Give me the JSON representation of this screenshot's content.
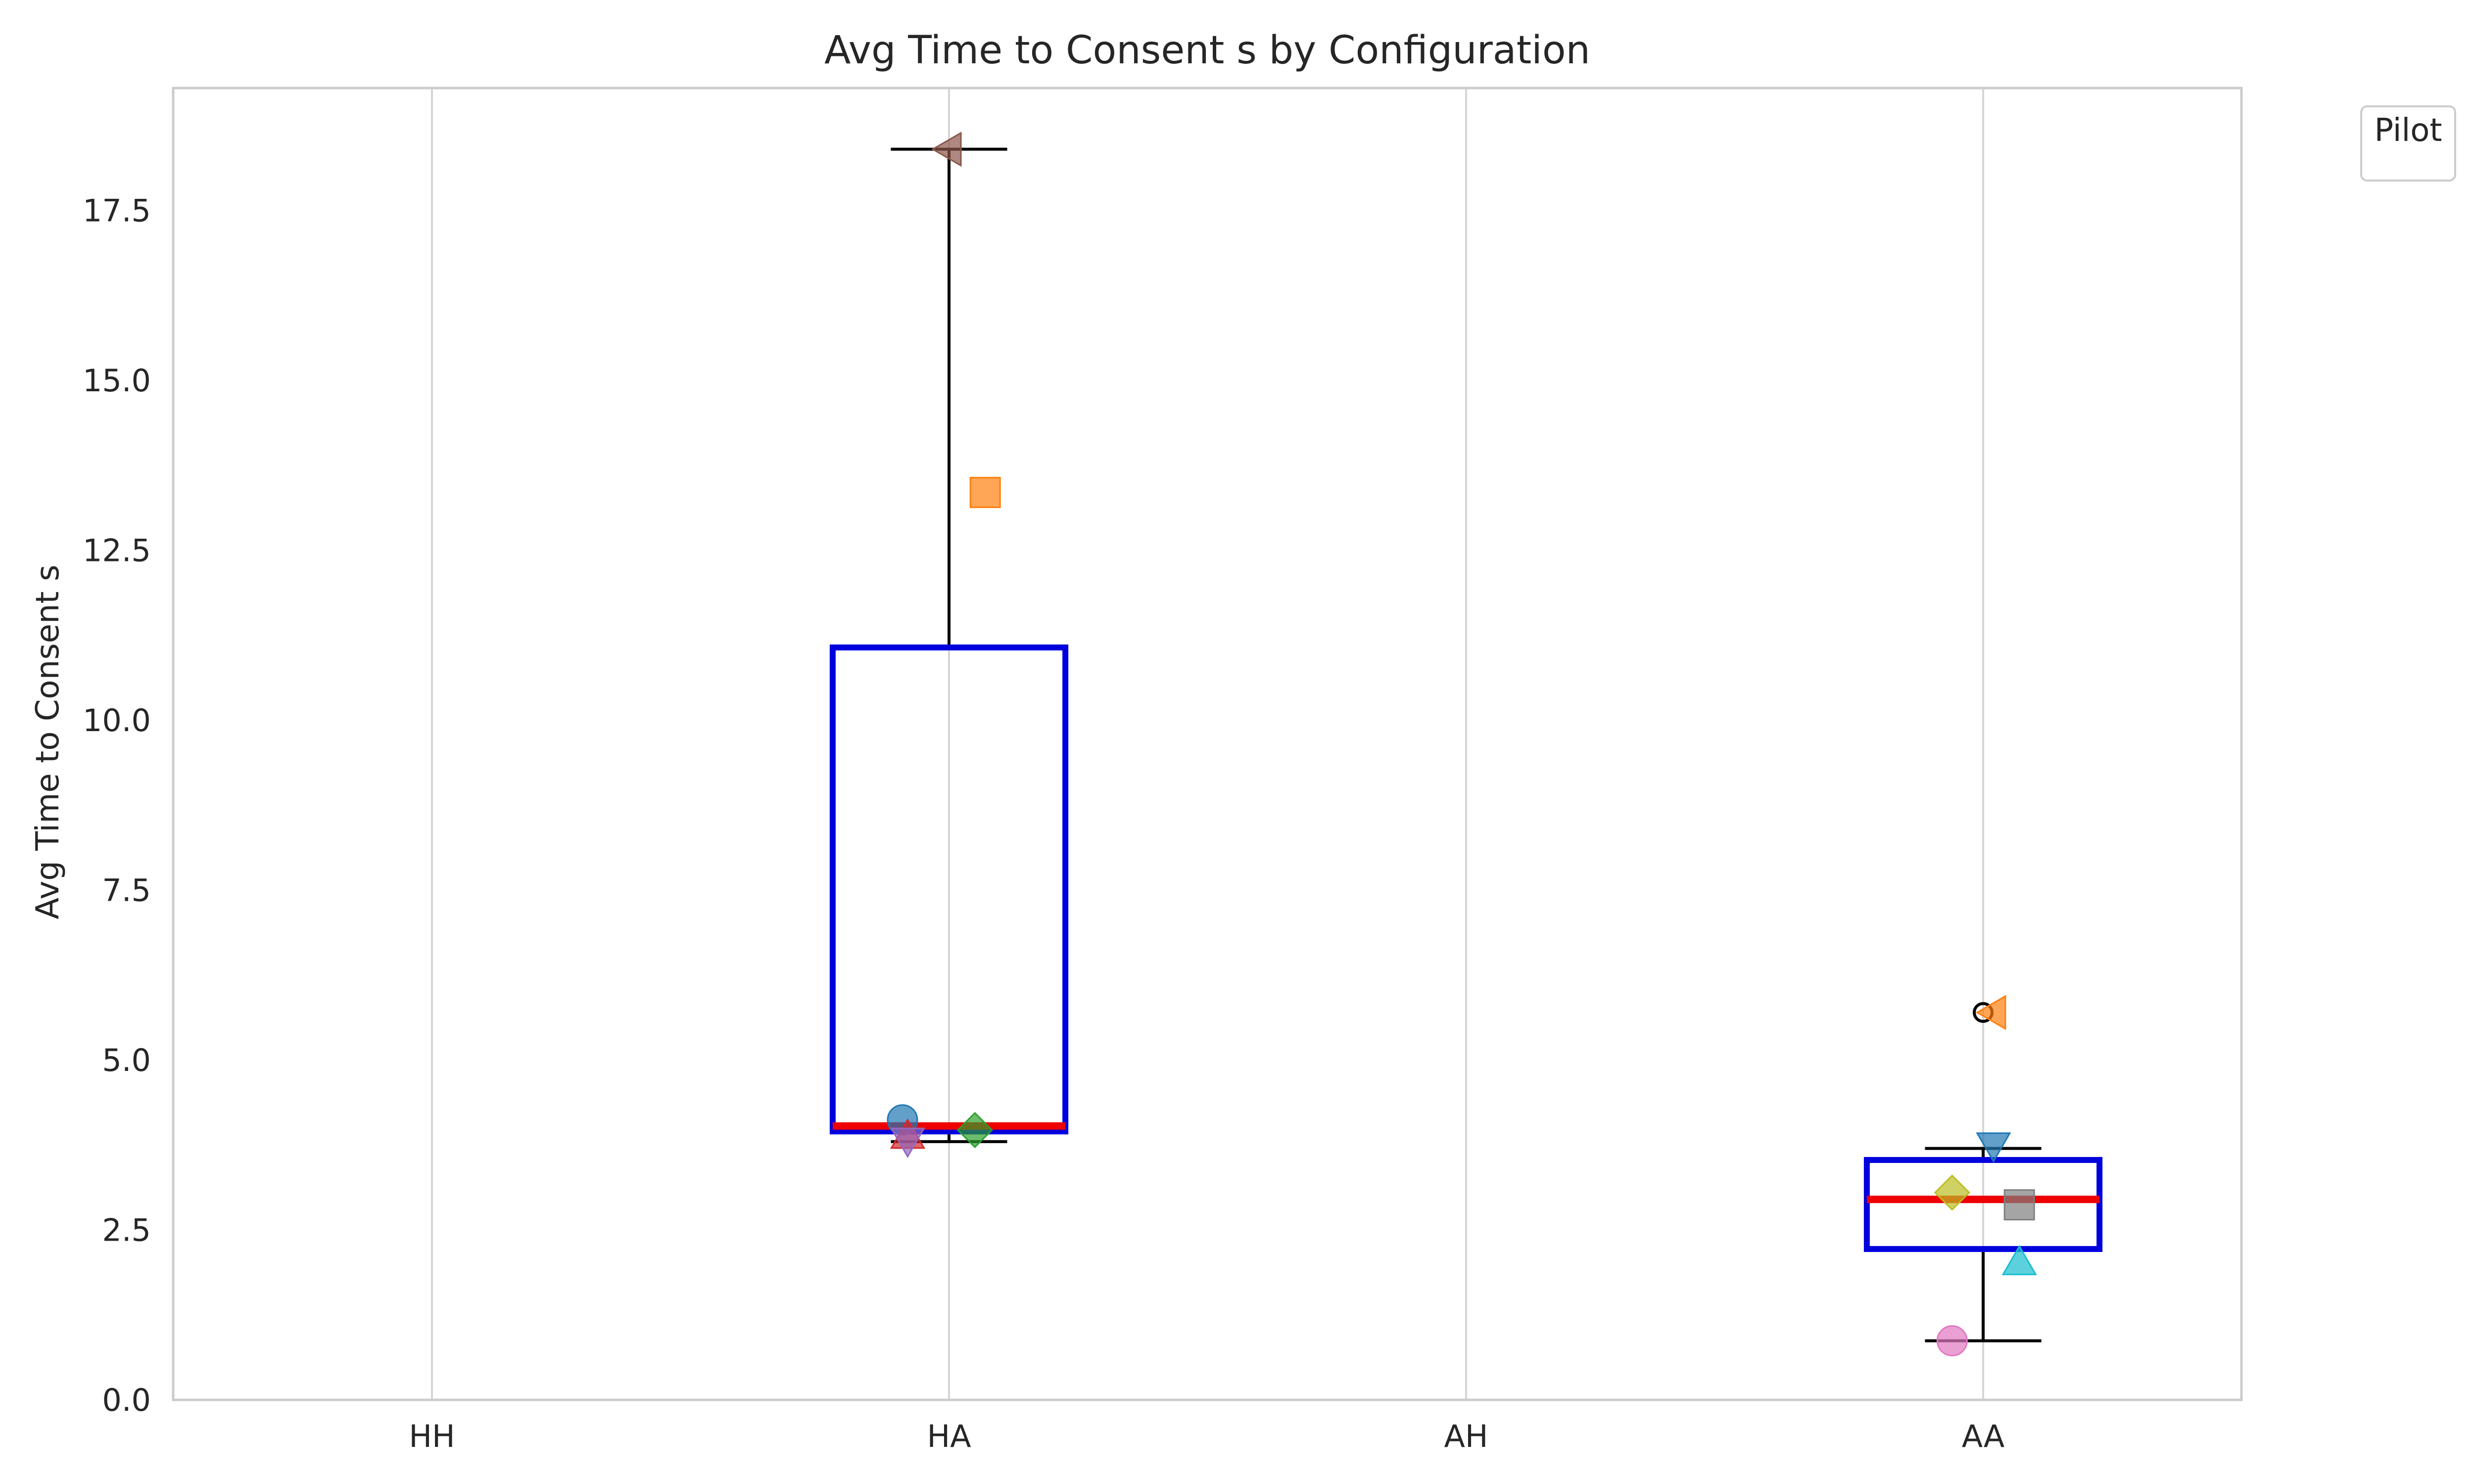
{
  "chart_data": {
    "type": "box",
    "title": "Avg Time to Consent s by Configuration",
    "xlabel": "",
    "ylabel": "Avg Time to Consent s",
    "categories": [
      "HH",
      "HA",
      "AH",
      "AA"
    ],
    "ylim": [
      0,
      19.3
    ],
    "yticks": [
      0.0,
      2.5,
      5.0,
      7.5,
      10.0,
      12.5,
      15.0,
      17.5
    ],
    "ytick_labels": [
      "0.0",
      "2.5",
      "5.0",
      "7.5",
      "10.0",
      "12.5",
      "15.0",
      "17.5"
    ],
    "grid": "vertical",
    "legend": {
      "title": "Pilot",
      "placement": "top-right outside",
      "entries": []
    },
    "box_style": {
      "box_color": "#0000dd",
      "median_color": "#ee0000",
      "whisker_color": "#000000"
    },
    "boxes": [
      {
        "category": "HA",
        "q1": 3.95,
        "median": 4.03,
        "q3": 11.07,
        "whisker_low": 3.8,
        "whisker_high": 18.4,
        "fliers": []
      },
      {
        "category": "AA",
        "q1": 2.22,
        "median": 2.95,
        "q3": 3.53,
        "whisker_low": 0.87,
        "whisker_high": 3.7,
        "fliers": [
          5.7
        ]
      }
    ],
    "points": [
      {
        "category": "HA",
        "offset": -0.09,
        "y": 4.12,
        "marker": "circle",
        "color": "#1f77b4"
      },
      {
        "category": "HA",
        "offset": 0.07,
        "y": 13.35,
        "marker": "square",
        "color": "#ff7f0e"
      },
      {
        "category": "HA",
        "offset": 0.05,
        "y": 3.97,
        "marker": "diamond",
        "color": "#2ca02c"
      },
      {
        "category": "HA",
        "offset": -0.08,
        "y": 3.88,
        "marker": "triangle-up",
        "color": "#d62728"
      },
      {
        "category": "HA",
        "offset": -0.08,
        "y": 3.82,
        "marker": "triangle-down",
        "color": "#9467bd"
      },
      {
        "category": "HA",
        "offset": 0.0,
        "y": 18.4,
        "marker": "triangle-left",
        "color": "#8c564b"
      },
      {
        "category": "AA",
        "offset": 0.02,
        "y": 3.75,
        "marker": "triangle-down",
        "color": "#1f77b4"
      },
      {
        "category": "AA",
        "offset": 0.02,
        "y": 5.7,
        "marker": "triangle-left",
        "color": "#ff7f0e"
      },
      {
        "category": "AA",
        "offset": -0.06,
        "y": 0.87,
        "marker": "circle",
        "color": "#e377c2"
      },
      {
        "category": "AA",
        "offset": 0.07,
        "y": 2.87,
        "marker": "square",
        "color": "#7f7f7f"
      },
      {
        "category": "AA",
        "offset": -0.06,
        "y": 3.05,
        "marker": "diamond",
        "color": "#bcbd22"
      },
      {
        "category": "AA",
        "offset": 0.07,
        "y": 2.02,
        "marker": "triangle-up",
        "color": "#17becf"
      }
    ]
  }
}
